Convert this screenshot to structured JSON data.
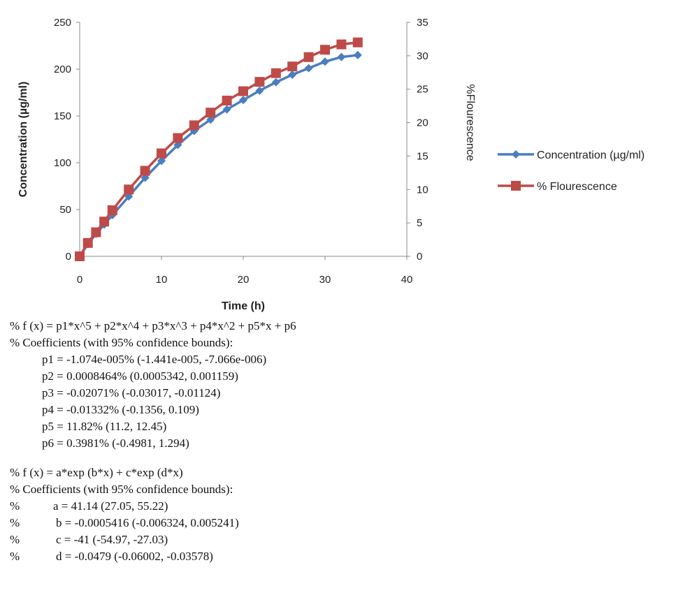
{
  "chart_data": {
    "type": "line",
    "xlabel": "Time (h)",
    "ylabel": "Concentration (µg/ml)",
    "y2label": "%Flourescence",
    "xlim": [
      0,
      40
    ],
    "ylim": [
      0,
      250
    ],
    "y2lim": [
      0,
      35
    ],
    "xticks": [
      "0",
      "10",
      "20",
      "30",
      "40"
    ],
    "yticks": [
      "0",
      "50",
      "100",
      "150",
      "200",
      "250"
    ],
    "y2ticks": [
      "0",
      "5",
      "10",
      "15",
      "20",
      "25",
      "30",
      "35"
    ],
    "grid": false,
    "legend_position": "right",
    "series": [
      {
        "name": "Concentration (µg/ml)",
        "axis": "left",
        "color": "#4a7ebf",
        "marker": "diamond",
        "x": [
          0,
          1,
          2,
          3,
          4,
          6,
          8,
          10,
          12,
          14,
          16,
          18,
          20,
          22,
          24,
          26,
          28,
          30,
          32,
          34
        ],
        "y": [
          0,
          13,
          24,
          34,
          44,
          64,
          84,
          102,
          119,
          134,
          146,
          157,
          167,
          177,
          186,
          194,
          201,
          208,
          213,
          215
        ]
      },
      {
        "name": "% Flourescence",
        "axis": "right",
        "color": "#be4b48",
        "marker": "square",
        "x": [
          0,
          1,
          2,
          3,
          4,
          6,
          8,
          10,
          12,
          14,
          16,
          18,
          20,
          22,
          24,
          26,
          28,
          30,
          32,
          34
        ],
        "y": [
          0,
          2.0,
          3.6,
          5.2,
          6.9,
          10.0,
          12.8,
          15.4,
          17.7,
          19.6,
          21.5,
          23.3,
          24.7,
          26.1,
          27.4,
          28.4,
          29.8,
          30.9,
          31.7,
          32.0
        ]
      }
    ]
  },
  "notes": {
    "fit1_equation": "% f (x) = p1*x^5 + p2*x^4 + p3*x^3 + p4*x^2 + p5*x + p6",
    "fit1_header": "% Coefficients (with 95% confidence bounds):",
    "fit1_coefficients": [
      "p1 = -1.074e-005% (-1.441e-005, -7.066e-006)",
      "p2 = 0.0008464% (0.0005342, 0.001159)",
      "p3 = -0.02071% (-0.03017, -0.01124)",
      "p4 = -0.01332% (-0.1356, 0.109)",
      "p5 = 11.82% (11.2, 12.45)",
      "p6 = 0.3981% (-0.4981, 1.294)"
    ],
    "fit2_equation": "% f (x) = a*exp (b*x) + c*exp (d*x)",
    "fit2_header": "% Coefficients (with 95% confidence bounds):",
    "fit2_prefix": "%",
    "fit2_coefficients": [
      "a = 41.14 (27.05, 55.22)",
      "b = -0.0005416 (-0.006324, 0.005241)",
      "c = -41 (-54.97, -27.03)",
      "d = -0.0479 (-0.06002, -0.03578)"
    ]
  }
}
